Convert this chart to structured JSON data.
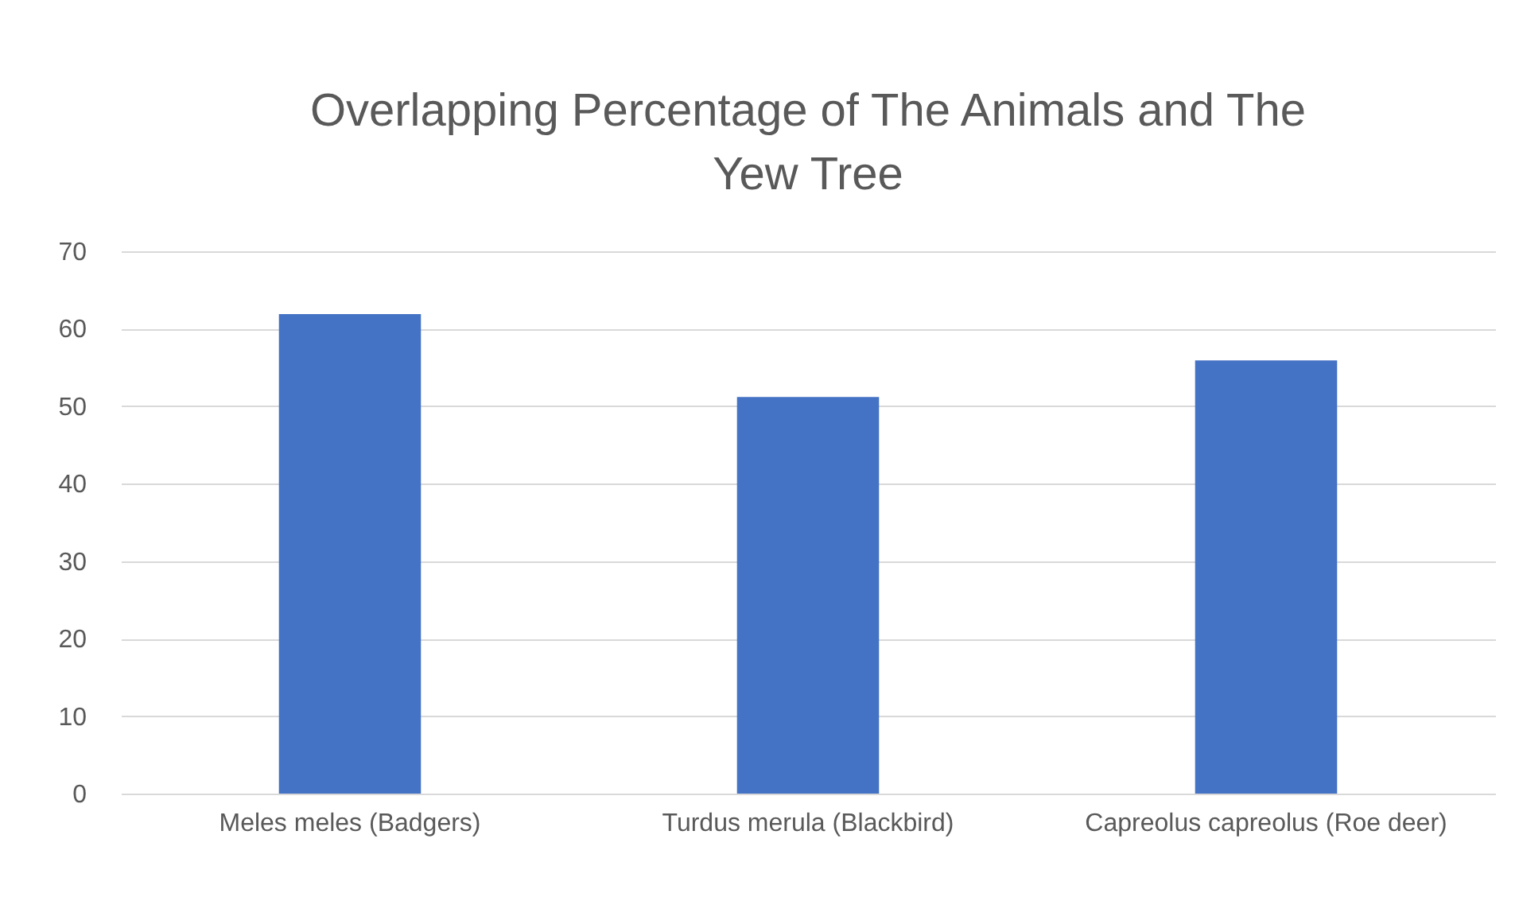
{
  "chart_data": {
    "type": "bar",
    "title": "Overlapping Percentage of The Animals and The Yew Tree",
    "categories": [
      "Meles meles (Badgers)",
      "Turdus merula (Blackbird)",
      "Capreolus capreolus (Roe deer)"
    ],
    "values": [
      61.9,
      51.2,
      55.9
    ],
    "color": "#4472c4",
    "ylim": [
      0,
      70
    ],
    "yticks": [
      0,
      10,
      20,
      30,
      40,
      50,
      60,
      70
    ],
    "grid": "y"
  }
}
